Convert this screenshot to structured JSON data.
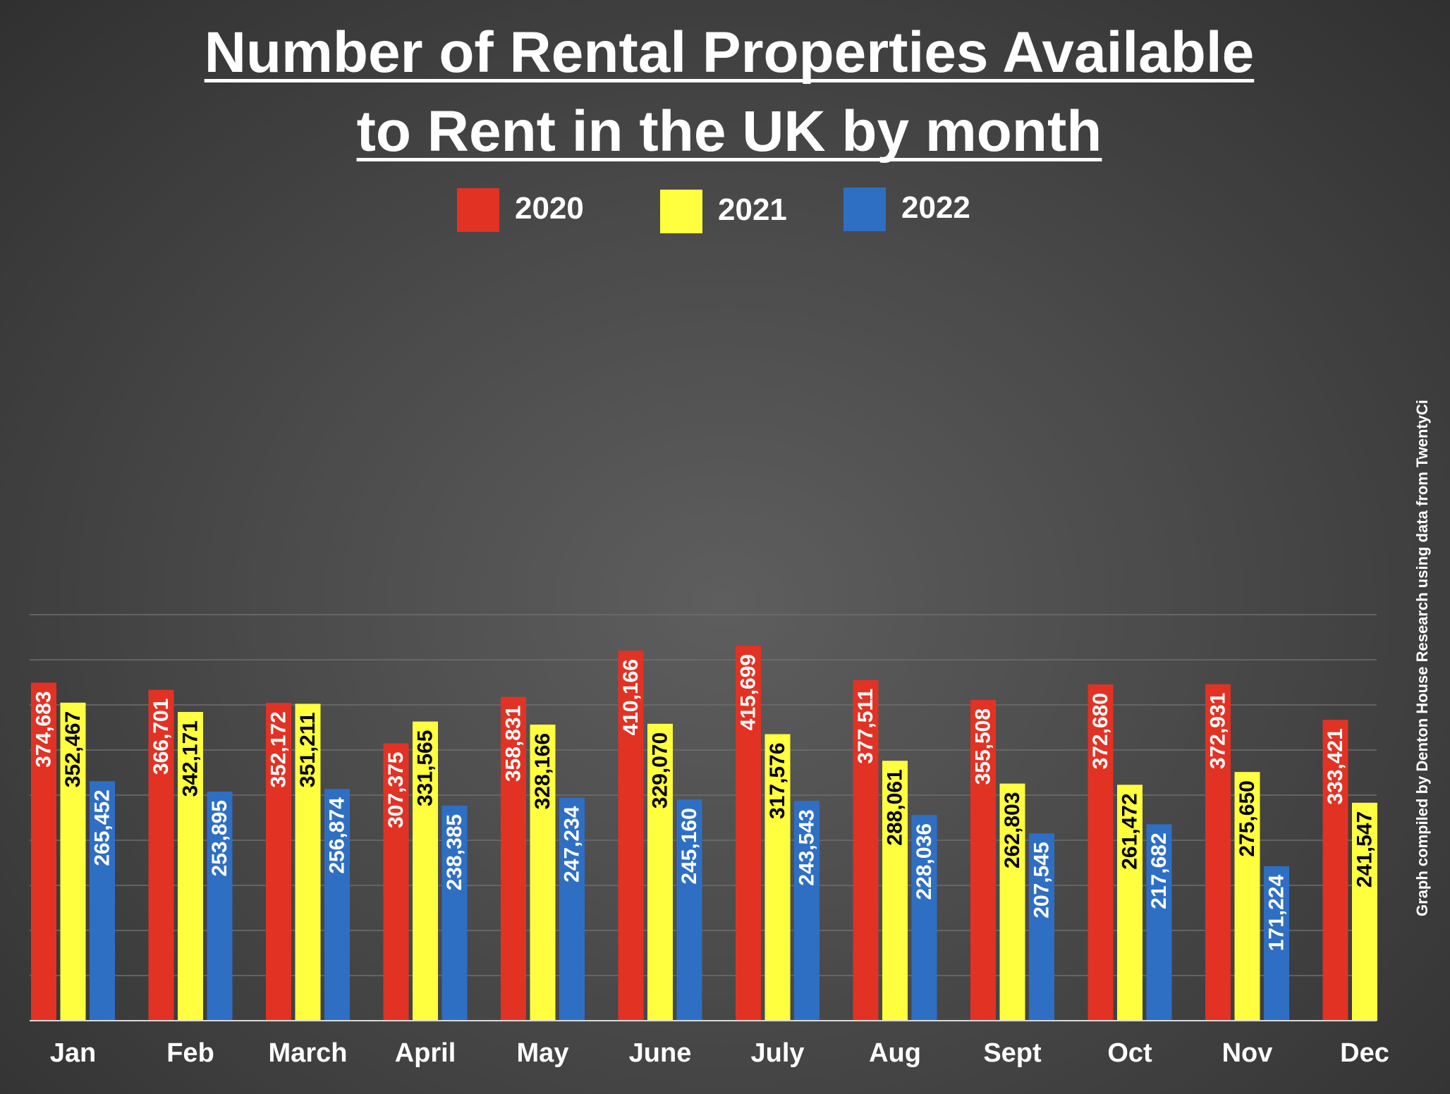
{
  "chart_data": {
    "type": "bar",
    "title_line1": "Number of Rental Properties Available",
    "title_line2": "to Rent in the UK by month",
    "categories": [
      "Jan",
      "Feb",
      "March",
      "April",
      "May",
      "June",
      "July",
      "Aug",
      "Sept",
      "Oct",
      "Nov",
      "Dec"
    ],
    "series": [
      {
        "name": "2020",
        "color": "#e23224",
        "label_color": "#ffffff",
        "values": [
          374683,
          366701,
          352172,
          307375,
          358831,
          410166,
          415699,
          377511,
          355508,
          372680,
          372931,
          333421
        ],
        "labels": [
          "374,683",
          "366,701",
          "352,172",
          "307,375",
          "358,831",
          "410,166",
          "415,699",
          "377,511",
          "355,508",
          "372,680",
          "372,931",
          "333,421"
        ]
      },
      {
        "name": "2021",
        "color": "#ffff40",
        "label_color": "#000000",
        "values": [
          352467,
          342171,
          351211,
          331565,
          328166,
          329070,
          317576,
          288061,
          262803,
          261472,
          275650,
          241547
        ],
        "labels": [
          "352,467",
          "342,171",
          "351,211",
          "331,565",
          "328,166",
          "329,070",
          "317,576",
          "288,061",
          "262,803",
          "261,472",
          "275,650",
          "241,547"
        ]
      },
      {
        "name": "2022",
        "color": "#2e6fc4",
        "label_color": "#ffffff",
        "values": [
          265452,
          253895,
          256874,
          238385,
          247234,
          245160,
          243543,
          228036,
          207545,
          217682,
          171224,
          null
        ],
        "labels": [
          "265,452",
          "253,895",
          "256,874",
          "238,385",
          "247,234",
          "245,160",
          "243,543",
          "228,036",
          "207,545",
          "217,682",
          "171,224",
          ""
        ]
      }
    ],
    "ylim": [
      0,
      450000
    ],
    "grid": true,
    "legend_position": "top-center",
    "credit": "Graph compiled by Denton House Research using data from TwentyCi"
  }
}
